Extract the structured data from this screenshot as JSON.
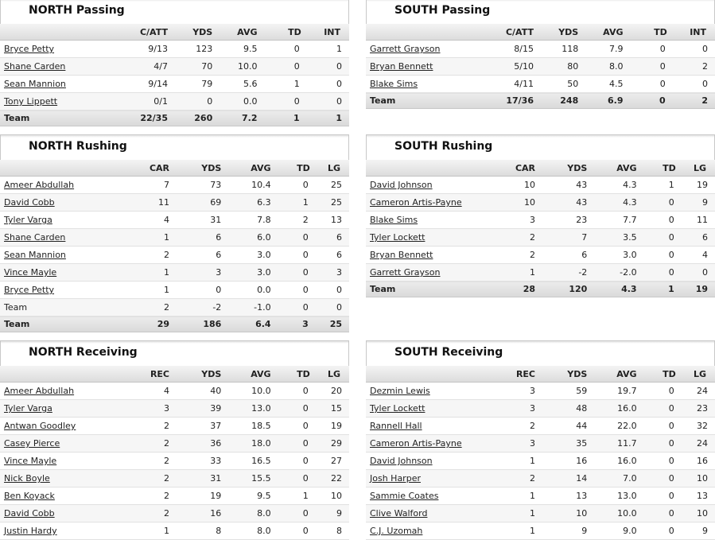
{
  "passing": {
    "north": {
      "title": "NORTH Passing",
      "headers": [
        "C/ATT",
        "YDS",
        "AVG",
        "TD",
        "INT"
      ],
      "rows": [
        {
          "name": "Bryce Petty",
          "v": [
            "9/13",
            "123",
            "9.5",
            "0",
            "1"
          ]
        },
        {
          "name": "Shane Carden",
          "v": [
            "4/7",
            "70",
            "10.0",
            "0",
            "0"
          ]
        },
        {
          "name": "Sean Mannion",
          "v": [
            "9/14",
            "79",
            "5.6",
            "1",
            "0"
          ]
        },
        {
          "name": "Tony Lippett",
          "v": [
            "0/1",
            "0",
            "0.0",
            "0",
            "0"
          ]
        }
      ],
      "team": {
        "name": "Team",
        "v": [
          "22/35",
          "260",
          "7.2",
          "1",
          "1"
        ]
      }
    },
    "south": {
      "title": "SOUTH Passing",
      "headers": [
        "C/ATT",
        "YDS",
        "AVG",
        "TD",
        "INT"
      ],
      "rows": [
        {
          "name": "Garrett Grayson",
          "v": [
            "8/15",
            "118",
            "7.9",
            "0",
            "0"
          ]
        },
        {
          "name": "Bryan Bennett",
          "v": [
            "5/10",
            "80",
            "8.0",
            "0",
            "2"
          ]
        },
        {
          "name": "Blake Sims",
          "v": [
            "4/11",
            "50",
            "4.5",
            "0",
            "0"
          ]
        }
      ],
      "team": {
        "name": "Team",
        "v": [
          "17/36",
          "248",
          "6.9",
          "0",
          "2"
        ]
      }
    }
  },
  "rushing": {
    "north": {
      "title": "NORTH Rushing",
      "headers": [
        "CAR",
        "YDS",
        "AVG",
        "TD",
        "LG"
      ],
      "rows": [
        {
          "name": "Ameer Abdullah",
          "v": [
            "7",
            "73",
            "10.4",
            "0",
            "25"
          ]
        },
        {
          "name": "David Cobb",
          "v": [
            "11",
            "69",
            "6.3",
            "1",
            "25"
          ]
        },
        {
          "name": "Tyler Varga",
          "v": [
            "4",
            "31",
            "7.8",
            "2",
            "13"
          ]
        },
        {
          "name": "Shane Carden",
          "v": [
            "1",
            "6",
            "6.0",
            "0",
            "6"
          ]
        },
        {
          "name": "Sean Mannion",
          "v": [
            "2",
            "6",
            "3.0",
            "0",
            "6"
          ]
        },
        {
          "name": "Vince Mayle",
          "v": [
            "1",
            "3",
            "3.0",
            "0",
            "3"
          ]
        },
        {
          "name": "Bryce Petty",
          "v": [
            "1",
            "0",
            "0.0",
            "0",
            "0"
          ]
        },
        {
          "name": "Team",
          "plain": true,
          "v": [
            "2",
            "-2",
            "-1.0",
            "0",
            "0"
          ]
        }
      ],
      "team": {
        "name": "Team",
        "v": [
          "29",
          "186",
          "6.4",
          "3",
          "25"
        ]
      }
    },
    "south": {
      "title": "SOUTH Rushing",
      "headers": [
        "CAR",
        "YDS",
        "AVG",
        "TD",
        "LG"
      ],
      "rows": [
        {
          "name": "David Johnson",
          "v": [
            "10",
            "43",
            "4.3",
            "1",
            "19"
          ]
        },
        {
          "name": "Cameron Artis-Payne",
          "v": [
            "10",
            "43",
            "4.3",
            "0",
            "9"
          ]
        },
        {
          "name": "Blake Sims",
          "v": [
            "3",
            "23",
            "7.7",
            "0",
            "11"
          ]
        },
        {
          "name": "Tyler Lockett",
          "v": [
            "2",
            "7",
            "3.5",
            "0",
            "6"
          ]
        },
        {
          "name": "Bryan Bennett",
          "v": [
            "2",
            "6",
            "3.0",
            "0",
            "4"
          ]
        },
        {
          "name": "Garrett Grayson",
          "v": [
            "1",
            "-2",
            "-2.0",
            "0",
            "0"
          ]
        }
      ],
      "team": {
        "name": "Team",
        "v": [
          "28",
          "120",
          "4.3",
          "1",
          "19"
        ]
      }
    }
  },
  "receiving": {
    "north": {
      "title": "NORTH Receiving",
      "headers": [
        "REC",
        "YDS",
        "AVG",
        "TD",
        "LG"
      ],
      "rows": [
        {
          "name": "Ameer Abdullah",
          "v": [
            "4",
            "40",
            "10.0",
            "0",
            "20"
          ]
        },
        {
          "name": "Tyler Varga",
          "v": [
            "3",
            "39",
            "13.0",
            "0",
            "15"
          ]
        },
        {
          "name": "Antwan Goodley",
          "v": [
            "2",
            "37",
            "18.5",
            "0",
            "19"
          ]
        },
        {
          "name": "Casey Pierce",
          "v": [
            "2",
            "36",
            "18.0",
            "0",
            "29"
          ]
        },
        {
          "name": "Vince Mayle",
          "v": [
            "2",
            "33",
            "16.5",
            "0",
            "27"
          ]
        },
        {
          "name": "Nick Boyle",
          "v": [
            "2",
            "31",
            "15.5",
            "0",
            "22"
          ]
        },
        {
          "name": "Ben Koyack",
          "v": [
            "2",
            "19",
            "9.5",
            "1",
            "10"
          ]
        },
        {
          "name": "David Cobb",
          "v": [
            "2",
            "16",
            "8.0",
            "0",
            "9"
          ]
        },
        {
          "name": "Justin Hardy",
          "v": [
            "1",
            "8",
            "8.0",
            "0",
            "8"
          ]
        }
      ]
    },
    "south": {
      "title": "SOUTH Receiving",
      "headers": [
        "REC",
        "YDS",
        "AVG",
        "TD",
        "LG"
      ],
      "rows": [
        {
          "name": "Dezmin Lewis",
          "v": [
            "3",
            "59",
            "19.7",
            "0",
            "24"
          ]
        },
        {
          "name": "Tyler Lockett",
          "v": [
            "3",
            "48",
            "16.0",
            "0",
            "23"
          ]
        },
        {
          "name": "Rannell Hall",
          "v": [
            "2",
            "44",
            "22.0",
            "0",
            "32"
          ]
        },
        {
          "name": "Cameron Artis-Payne",
          "v": [
            "3",
            "35",
            "11.7",
            "0",
            "24"
          ]
        },
        {
          "name": "David Johnson",
          "v": [
            "1",
            "16",
            "16.0",
            "0",
            "16"
          ]
        },
        {
          "name": "Josh Harper",
          "v": [
            "2",
            "14",
            "7.0",
            "0",
            "10"
          ]
        },
        {
          "name": "Sammie Coates",
          "v": [
            "1",
            "13",
            "13.0",
            "0",
            "13"
          ]
        },
        {
          "name": "Clive Walford",
          "v": [
            "1",
            "10",
            "10.0",
            "0",
            "10"
          ]
        },
        {
          "name": "C.J. Uzomah",
          "v": [
            "1",
            "9",
            "9.0",
            "0",
            "9"
          ]
        }
      ]
    }
  }
}
